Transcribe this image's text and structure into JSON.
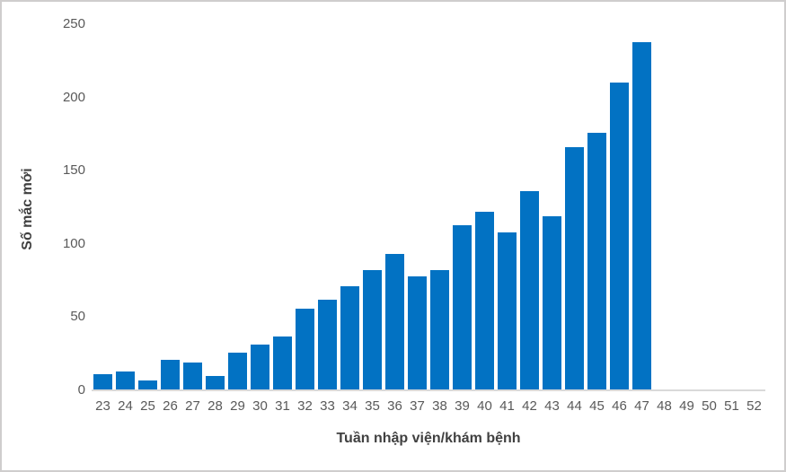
{
  "frame": {
    "background": "#FFFFFF",
    "border_color": "#CFCDCD"
  },
  "axis": {
    "tick_label_color": "#595959",
    "title_color": "#404040",
    "axis_line_color": "#D9D9D9"
  },
  "chart_data": {
    "type": "bar",
    "title": "",
    "xlabel": "Tuần nhập viện/khám bệnh",
    "ylabel": "Số mắc mới",
    "categories": [
      "23",
      "24",
      "25",
      "26",
      "27",
      "28",
      "29",
      "30",
      "31",
      "32",
      "33",
      "34",
      "35",
      "36",
      "37",
      "38",
      "39",
      "40",
      "41",
      "42",
      "43",
      "44",
      "45",
      "46",
      "47",
      "48",
      "49",
      "50",
      "51",
      "52"
    ],
    "values": [
      11,
      13,
      7,
      21,
      19,
      10,
      26,
      31,
      37,
      56,
      62,
      71,
      82,
      93,
      78,
      82,
      113,
      122,
      108,
      136,
      119,
      166,
      176,
      210,
      238,
      0,
      0,
      0,
      0,
      0
    ],
    "ylim": [
      0,
      250
    ],
    "y_ticks": [
      0,
      50,
      100,
      150,
      200,
      250
    ],
    "bar_color": "#0272C3",
    "grid": false,
    "legend": false
  }
}
